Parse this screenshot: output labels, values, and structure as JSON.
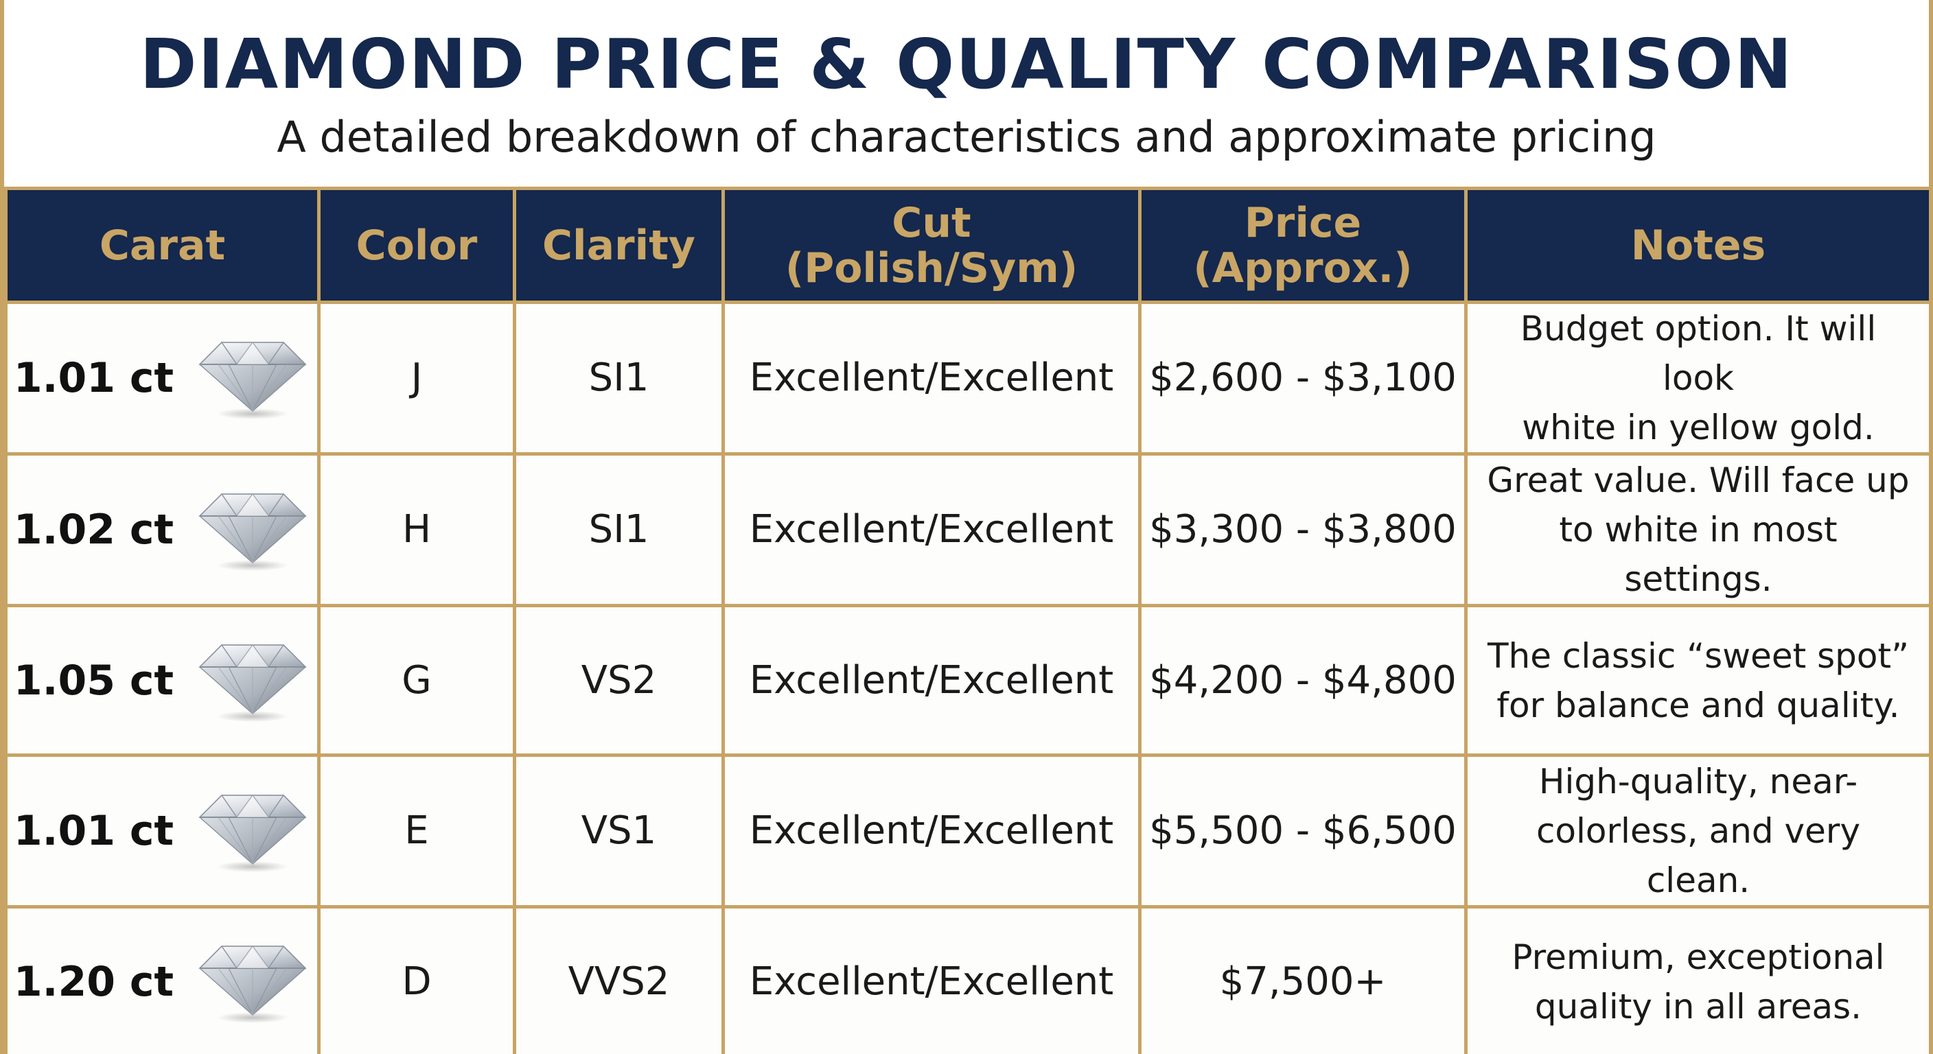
{
  "title": "DIAMOND PRICE & QUALITY COMPARISON",
  "subtitle": "A detailed breakdown of characteristics and approximate pricing",
  "colors": {
    "navy": "#15284d",
    "gold": "#c7a464",
    "header_text": "#c9a665"
  },
  "table": {
    "headers": {
      "carat": "Carat",
      "color": "Color",
      "clarity": "Clarity",
      "cut_line1": "Cut",
      "cut_line2": "(Polish/Sym)",
      "price_line1": "Price",
      "price_line2": "(Approx.)",
      "notes": "Notes"
    },
    "rows": [
      {
        "carat": "1.01 ct",
        "color": "J",
        "clarity": "SI1",
        "cut": "Excellent/Excellent",
        "price": "$2,600 - $3,100",
        "notes_line1": "Budget option. It will look",
        "notes_line2": "white in yellow gold.",
        "icon": "diamond-icon"
      },
      {
        "carat": "1.02 ct",
        "color": "H",
        "clarity": "SI1",
        "cut": "Excellent/Excellent",
        "price": "$3,300 - $3,800",
        "notes_line1": "Great value. Will face up",
        "notes_line2": "to white in most settings.",
        "icon": "diamond-icon"
      },
      {
        "carat": "1.05 ct",
        "color": "G",
        "clarity": "VS2",
        "cut": "Excellent/Excellent",
        "price": "$4,200 - $4,800",
        "notes_line1": "The classic “sweet spot”",
        "notes_line2": "for balance and quality.",
        "icon": "diamond-icon"
      },
      {
        "carat": "1.01 ct",
        "color": "E",
        "clarity": "VS1",
        "cut": "Excellent/Excellent",
        "price": "$5,500 - $6,500",
        "notes_line1": "High-quality, near-",
        "notes_line2": "colorless, and very clean.",
        "icon": "diamond-icon"
      },
      {
        "carat": "1.20 ct",
        "color": "D",
        "clarity": "VVS2",
        "cut": "Excellent/Excellent",
        "price": "$7,500+",
        "notes_line1": "Premium, exceptional",
        "notes_line2": "quality in all areas.",
        "icon": "diamond-icon"
      }
    ]
  }
}
